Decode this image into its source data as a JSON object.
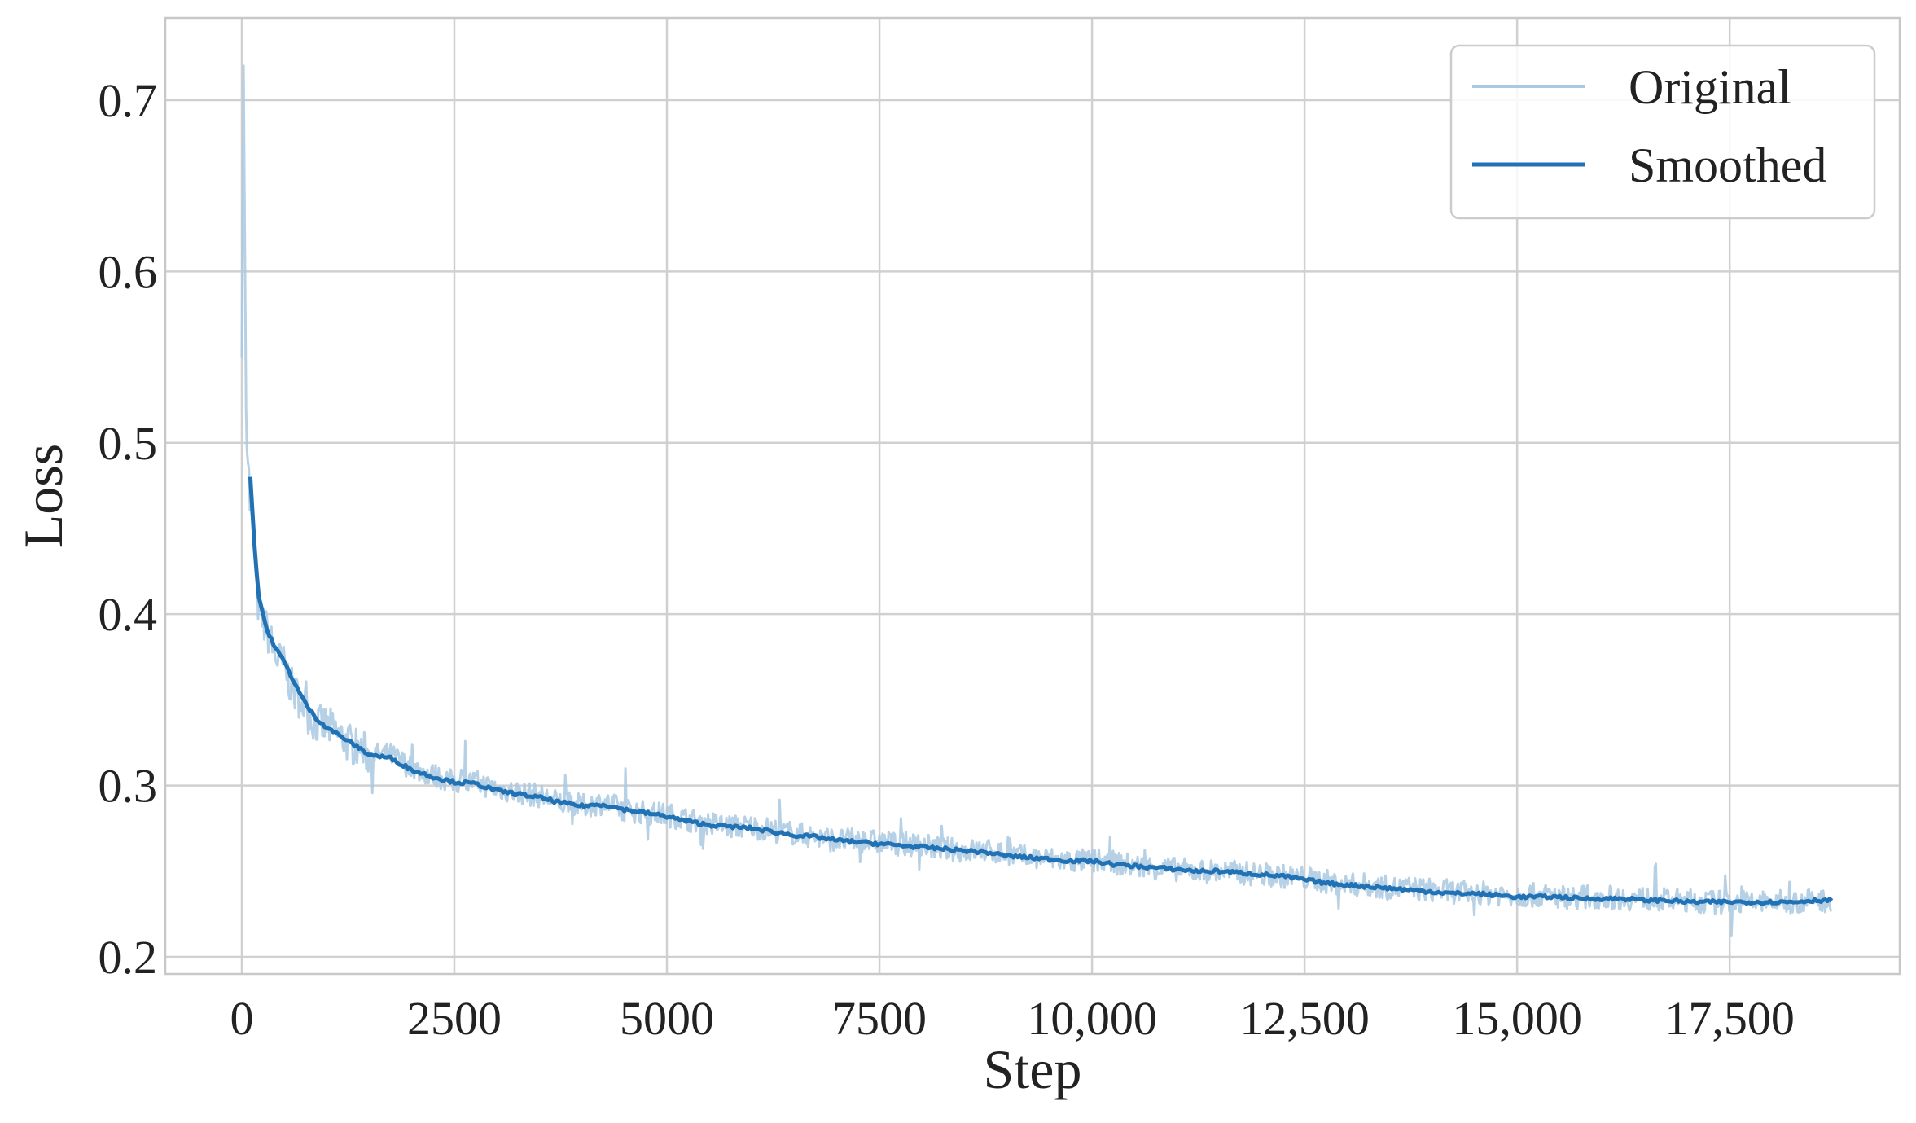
{
  "chart_data": {
    "type": "line",
    "xlabel": "Step",
    "ylabel": "Loss",
    "xlim": [
      -900,
      19500
    ],
    "ylim": [
      0.19,
      0.748
    ],
    "xticks": [
      0,
      2500,
      5000,
      7500,
      10000,
      12500,
      15000,
      17500
    ],
    "xtick_labels": [
      "0",
      "2500",
      "5000",
      "7500",
      "10,000",
      "12,500",
      "15,000",
      "17,500"
    ],
    "yticks": [
      0.2,
      0.3,
      0.4,
      0.5,
      0.6,
      0.7
    ],
    "ytick_labels": [
      "0.2",
      "0.3",
      "0.4",
      "0.5",
      "0.6",
      "0.7"
    ],
    "grid": true,
    "legend_position": "top-right",
    "series": [
      {
        "name": "Original",
        "color": "#a9c9e0",
        "x": [
          0,
          20,
          50,
          100,
          150,
          200,
          300,
          400,
          500,
          600,
          700,
          800,
          900,
          1000,
          1250,
          1500,
          1750,
          2000,
          2250,
          2500,
          2750,
          3000,
          3250,
          3500,
          3750,
          4000,
          4250,
          4500,
          4750,
          5000,
          5250,
          5500,
          5750,
          6000,
          6250,
          6500,
          6750,
          7000,
          7250,
          7500,
          7750,
          8000,
          8250,
          8500,
          8750,
          9000,
          9250,
          9500,
          9750,
          10000,
          10250,
          10500,
          10750,
          11000,
          11250,
          11500,
          11750,
          12000,
          12250,
          12500,
          12750,
          13000,
          13250,
          13500,
          13750,
          14000,
          14250,
          14500,
          14750,
          15000,
          15250,
          15500,
          15750,
          16000,
          16250,
          16500,
          16750,
          17000,
          17250,
          17500,
          17750,
          18000,
          18250,
          18500,
          18700
        ],
        "y": [
          0.55,
          0.72,
          0.52,
          0.46,
          0.44,
          0.4,
          0.39,
          0.375,
          0.37,
          0.355,
          0.35,
          0.34,
          0.335,
          0.335,
          0.325,
          0.318,
          0.318,
          0.31,
          0.306,
          0.302,
          0.302,
          0.298,
          0.296,
          0.294,
          0.29,
          0.288,
          0.29,
          0.286,
          0.284,
          0.283,
          0.28,
          0.278,
          0.276,
          0.276,
          0.274,
          0.272,
          0.27,
          0.268,
          0.268,
          0.267,
          0.266,
          0.265,
          0.263,
          0.262,
          0.262,
          0.26,
          0.258,
          0.257,
          0.256,
          0.256,
          0.255,
          0.253,
          0.252,
          0.251,
          0.25,
          0.25,
          0.249,
          0.248,
          0.247,
          0.246,
          0.244,
          0.242,
          0.242,
          0.24,
          0.24,
          0.239,
          0.238,
          0.237,
          0.237,
          0.236,
          0.236,
          0.235,
          0.235,
          0.235,
          0.234,
          0.234,
          0.233,
          0.233,
          0.232,
          0.232,
          0.232,
          0.232,
          0.232,
          0.233,
          0.233
        ]
      },
      {
        "name": "Smoothed",
        "color": "#2171b5",
        "x": [
          100,
          150,
          200,
          300,
          400,
          500,
          600,
          700,
          800,
          900,
          1000,
          1250,
          1500,
          1750,
          2000,
          2250,
          2500,
          2750,
          3000,
          3250,
          3500,
          3750,
          4000,
          4250,
          4500,
          4750,
          5000,
          5250,
          5500,
          5750,
          6000,
          6250,
          6500,
          6750,
          7000,
          7250,
          7500,
          7750,
          8000,
          8250,
          8500,
          8750,
          9000,
          9250,
          9500,
          9750,
          10000,
          10250,
          10500,
          10750,
          11000,
          11250,
          11500,
          11750,
          12000,
          12250,
          12500,
          12750,
          13000,
          13250,
          13500,
          13750,
          14000,
          14250,
          14500,
          14750,
          15000,
          15250,
          15500,
          15750,
          16000,
          16250,
          16500,
          16750,
          17000,
          17250,
          17500,
          17750,
          18000,
          18250,
          18500,
          18700
        ],
        "y": [
          0.48,
          0.44,
          0.41,
          0.39,
          0.38,
          0.372,
          0.362,
          0.352,
          0.344,
          0.338,
          0.334,
          0.326,
          0.318,
          0.316,
          0.309,
          0.305,
          0.302,
          0.301,
          0.297,
          0.295,
          0.293,
          0.29,
          0.288,
          0.289,
          0.286,
          0.284,
          0.282,
          0.279,
          0.277,
          0.276,
          0.275,
          0.273,
          0.271,
          0.27,
          0.268,
          0.267,
          0.266,
          0.265,
          0.264,
          0.263,
          0.262,
          0.261,
          0.259,
          0.258,
          0.257,
          0.256,
          0.256,
          0.254,
          0.253,
          0.252,
          0.251,
          0.25,
          0.25,
          0.249,
          0.248,
          0.247,
          0.245,
          0.243,
          0.242,
          0.241,
          0.24,
          0.239,
          0.238,
          0.237,
          0.237,
          0.236,
          0.235,
          0.235,
          0.235,
          0.234,
          0.234,
          0.234,
          0.233,
          0.233,
          0.232,
          0.232,
          0.232,
          0.232,
          0.232,
          0.232,
          0.233,
          0.233
        ]
      }
    ]
  }
}
